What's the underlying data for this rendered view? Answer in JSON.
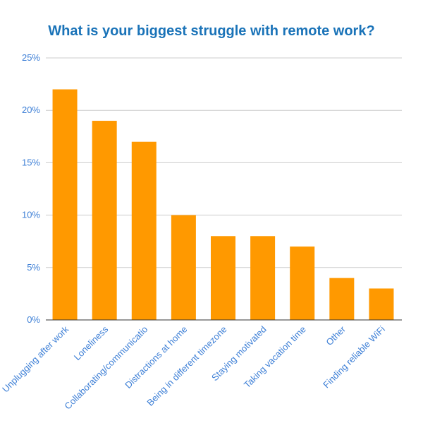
{
  "chart_data": {
    "type": "bar",
    "title": "What is your biggest struggle with remote work?",
    "xlabel": "",
    "ylabel": "",
    "categories": [
      "Unplugging after work",
      "Loneliness",
      "Collaborating/communicatio",
      "Distractions at home",
      "Being in different timezone",
      "Staying motivated",
      "Taking vacation time",
      "Other",
      "Finding reliable WiFi"
    ],
    "values": [
      22,
      19,
      17,
      10,
      8,
      8,
      7,
      4,
      3
    ],
    "ylim": [
      0,
      25
    ],
    "yticks": [
      0,
      5,
      10,
      15,
      20,
      25
    ],
    "ytick_labels": [
      "0%",
      "5%",
      "10%",
      "15%",
      "20%",
      "25%"
    ],
    "grid": true,
    "legend": "none",
    "colors": {
      "bar": "#ff9900",
      "title": "#1a73b8",
      "tick_text": "#3d7fd6",
      "grid": "#cccccc",
      "axis": "#333333"
    }
  }
}
